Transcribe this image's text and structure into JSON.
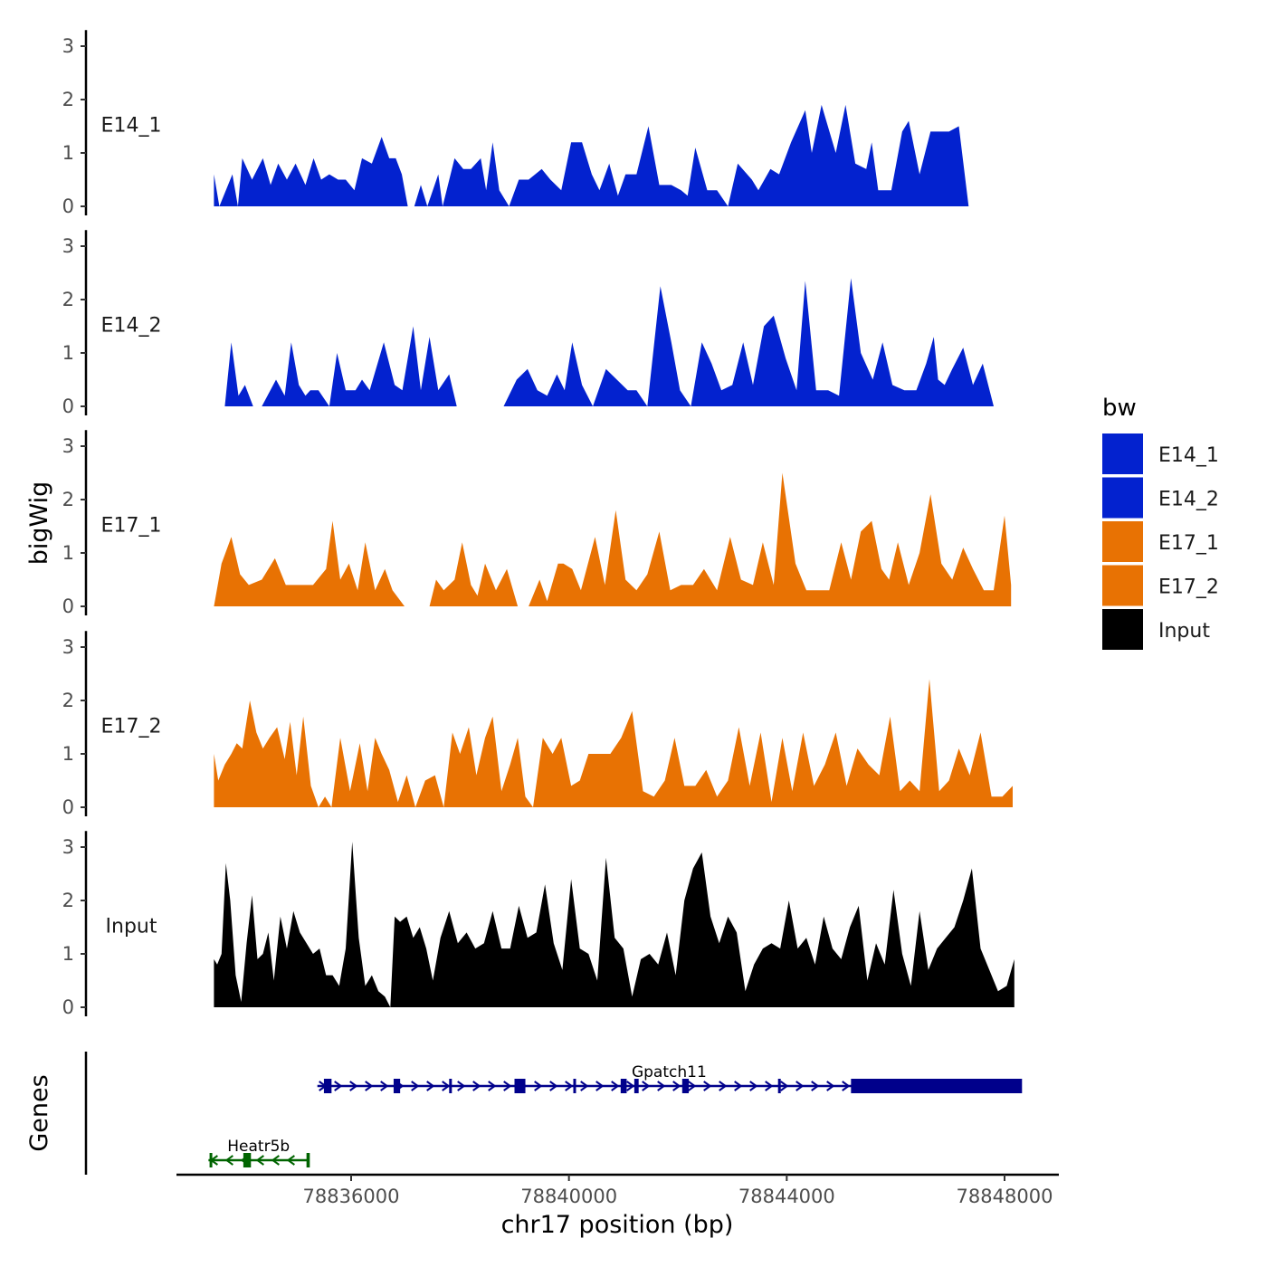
{
  "chart_data": {
    "type": "area",
    "x_axis": {
      "title": "chr17 position (bp)",
      "range": [
        78833400,
        78848700
      ],
      "ticks": [
        78836000,
        78840000,
        78844000,
        78848000
      ],
      "tick_labels": [
        "78836000",
        "78840000",
        "78844000",
        "78848000"
      ]
    },
    "y_axis": {
      "title": "bigWig",
      "range": [
        0,
        3.25
      ],
      "ticks": [
        0,
        1,
        2,
        3
      ],
      "tick_labels": [
        "0",
        "1",
        "2",
        "3"
      ]
    },
    "series": [
      {
        "name": "E14_1",
        "color": "#0322CF",
        "x": [
          78833480,
          78833580,
          78833820,
          78833920,
          78834000,
          78834180,
          78834380,
          78834520,
          78834660,
          78834820,
          78834980,
          78835160,
          78835310,
          78835450,
          78835600,
          78835760,
          78835900,
          78836060,
          78836200,
          78836380,
          78836560,
          78836700,
          78836820,
          78836930,
          78837040,
          78837160,
          78837280,
          78837400,
          78837600,
          78837680,
          78837900,
          78838060,
          78838200,
          78838380,
          78838480,
          78838600,
          78838720,
          78838900,
          78839080,
          78839260,
          78839500,
          78839660,
          78839860,
          78840040,
          78840240,
          78840420,
          78840560,
          78840740,
          78840900,
          78841040,
          78841240,
          78841460,
          78841660,
          78841880,
          78842060,
          78842180,
          78842320,
          78842540,
          78842720,
          78842920,
          78843100,
          78843360,
          78843480,
          78843700,
          78843860,
          78844080,
          78844340,
          78844460,
          78844640,
          78844900,
          78845080,
          78845260,
          78845460,
          78845560,
          78845680,
          78845920,
          78846120,
          78846240,
          78846440,
          78846640,
          78846840,
          78846980,
          78847160,
          78847340,
          78847620,
          78847780,
          78847900,
          78848050,
          78848120
        ],
        "values": [
          0.6,
          0,
          0.6,
          0,
          0.9,
          0.5,
          0.9,
          0.4,
          0.8,
          0.5,
          0.8,
          0.4,
          0.9,
          0.5,
          0.6,
          0.5,
          0.5,
          0.3,
          0.9,
          0.8,
          1.3,
          0.9,
          0.9,
          0.6,
          0,
          0,
          0.4,
          0,
          0.6,
          0,
          0.9,
          0.7,
          0.7,
          0.9,
          0.3,
          1.2,
          0.3,
          0,
          0.5,
          0.5,
          0.7,
          0.5,
          0.3,
          1.2,
          1.2,
          0.6,
          0.3,
          0.8,
          0.2,
          0.6,
          0.6,
          1.5,
          0.4,
          0.4,
          0.3,
          0.2,
          1.1,
          0.3,
          0.3,
          0,
          0.8,
          0.5,
          0.3,
          0.7,
          0.6,
          1.2,
          1.8,
          1.0,
          1.9,
          1.0,
          1.9,
          0.8,
          0.7,
          1.2,
          0.3,
          0.3,
          1.4,
          1.6,
          0.6,
          1.4,
          1.4,
          1.4,
          1.5,
          0,
          0,
          0,
          0,
          0,
          0
        ]
      },
      {
        "name": "E14_2",
        "color": "#0322CF",
        "x": [
          78833680,
          78833800,
          78833930,
          78834050,
          78834200,
          78834360,
          78834620,
          78834780,
          78834900,
          78835040,
          78835160,
          78835250,
          78835400,
          78835600,
          78835740,
          78835900,
          78836080,
          78836200,
          78836340,
          78836600,
          78836800,
          78836940,
          78837140,
          78837280,
          78837440,
          78837600,
          78837800,
          78837940,
          78838040,
          78838120,
          78838200,
          78838320,
          78838480,
          78838620,
          78838800,
          78839040,
          78839240,
          78839420,
          78839600,
          78839780,
          78839920,
          78840060,
          78840240,
          78840440,
          78840680,
          78840880,
          78841080,
          78841240,
          78841440,
          78841680,
          78841880,
          78842040,
          78842240,
          78842440,
          78842620,
          78842800,
          78843000,
          78843200,
          78843380,
          78843580,
          78843760,
          78843980,
          78844180,
          78844340,
          78844540,
          78844760,
          78844960,
          78845180,
          78845360,
          78845580,
          78845760,
          78845940,
          78846160,
          78846380,
          78846560,
          78846700,
          78846780,
          78846900,
          78847040,
          78847240,
          78847420,
          78847600,
          78847800,
          78848000,
          78848120,
          78848250
        ],
        "values": [
          0,
          1.2,
          0.2,
          0.4,
          0,
          0,
          0.5,
          0.2,
          1.2,
          0.4,
          0.2,
          0.3,
          0.3,
          0,
          1.0,
          0.3,
          0.3,
          0.5,
          0.3,
          1.2,
          0.4,
          0.3,
          1.5,
          0.3,
          1.3,
          0.3,
          0.6,
          0,
          0,
          0,
          0,
          0,
          0,
          0,
          0,
          0.5,
          0.7,
          0.3,
          0.2,
          0.6,
          0.3,
          1.2,
          0.4,
          0,
          0.7,
          0.5,
          0.3,
          0.3,
          0,
          2.25,
          1.2,
          0.3,
          0,
          1.2,
          0.8,
          0.3,
          0.4,
          1.2,
          0.4,
          1.5,
          1.7,
          0.9,
          0.3,
          2.35,
          0.3,
          0.3,
          0.2,
          2.4,
          1.0,
          0.5,
          1.2,
          0.4,
          0.3,
          0.3,
          0.8,
          1.3,
          0.5,
          0.4,
          0.7,
          1.1,
          0.4,
          0.8,
          0,
          0,
          0,
          0
        ]
      },
      {
        "name": "E17_1",
        "color": "#E87203",
        "x": [
          78833480,
          78833620,
          78833800,
          78833960,
          78834120,
          78834360,
          78834600,
          78834800,
          78835060,
          78835300,
          78835540,
          78835660,
          78835800,
          78835960,
          78836120,
          78836260,
          78836440,
          78836620,
          78836760,
          78836980,
          78837200,
          78837440,
          78837560,
          78837700,
          78837900,
          78838040,
          78838200,
          78838320,
          78838460,
          78838660,
          78838860,
          78839060,
          78839260,
          78839460,
          78839600,
          78839800,
          78839900,
          78840060,
          78840220,
          78840480,
          78840660,
          78840860,
          78841040,
          78841240,
          78841440,
          78841660,
          78841860,
          78842060,
          78842280,
          78842480,
          78842720,
          78842960,
          78843160,
          78843380,
          78843560,
          78843760,
          78843920,
          78844160,
          78844360,
          78844560,
          78844780,
          78845000,
          78845180,
          78845360,
          78845560,
          78845740,
          78845880,
          78846040,
          78846240,
          78846440,
          78846640,
          78846840,
          78847040,
          78847240,
          78847420,
          78847620,
          78847800,
          78848000,
          78848120
        ],
        "values": [
          0,
          0.8,
          1.3,
          0.6,
          0.4,
          0.5,
          0.9,
          0.4,
          0.4,
          0.4,
          0.7,
          1.6,
          0.5,
          0.8,
          0.3,
          1.2,
          0.3,
          0.7,
          0.3,
          0,
          0,
          0,
          0.5,
          0.3,
          0.5,
          1.2,
          0.4,
          0.2,
          0.8,
          0.3,
          0.7,
          0,
          0,
          0.5,
          0.1,
          0.8,
          0.8,
          0.7,
          0.3,
          1.3,
          0.4,
          1.8,
          0.5,
          0.3,
          0.6,
          1.4,
          0.3,
          0.4,
          0.4,
          0.7,
          0.3,
          1.3,
          0.5,
          0.4,
          1.2,
          0.4,
          2.5,
          0.8,
          0.3,
          0.3,
          0.3,
          1.2,
          0.5,
          1.4,
          1.6,
          0.7,
          0.5,
          1.2,
          0.4,
          1.0,
          2.1,
          0.8,
          0.5,
          1.1,
          0.7,
          0.3,
          0.3,
          1.7,
          0.4
        ]
      },
      {
        "name": "E17_2",
        "color": "#E87203",
        "x": [
          78833480,
          78833560,
          78833680,
          78833800,
          78833900,
          78834000,
          78834140,
          78834260,
          78834380,
          78834500,
          78834640,
          78834780,
          78834880,
          78835000,
          78835120,
          78835260,
          78835400,
          78835520,
          78835640,
          78835800,
          78835980,
          78836160,
          78836300,
          78836440,
          78836560,
          78836700,
          78836860,
          78837020,
          78837180,
          78837360,
          78837540,
          78837700,
          78837860,
          78838000,
          78838160,
          78838300,
          78838460,
          78838600,
          78838760,
          78838920,
          78839060,
          78839200,
          78839340,
          78839520,
          78839700,
          78839860,
          78840040,
          78840200,
          78840360,
          78840560,
          78840760,
          78840960,
          78841160,
          78841360,
          78841560,
          78841760,
          78841940,
          78842120,
          78842320,
          78842520,
          78842720,
          78842920,
          78843120,
          78843320,
          78843520,
          78843720,
          78843920,
          78844100,
          78844300,
          78844500,
          78844700,
          78844900,
          78845100,
          78845300,
          78845500,
          78845700,
          78845900,
          78846080,
          78846260,
          78846440,
          78846620,
          78846800,
          78846980,
          78847160,
          78847360,
          78847560,
          78847760,
          78847960,
          78848150
        ],
        "values": [
          1.0,
          0.5,
          0.8,
          1.0,
          1.2,
          1.1,
          2.0,
          1.4,
          1.1,
          1.3,
          1.5,
          0.9,
          1.6,
          0.6,
          1.7,
          0.4,
          0,
          0.2,
          0,
          1.3,
          0.3,
          1.2,
          0.3,
          1.3,
          1.0,
          0.7,
          0.1,
          0.6,
          0,
          0.5,
          0.6,
          0,
          1.4,
          1.0,
          1.5,
          0.6,
          1.3,
          1.7,
          0.3,
          0.8,
          1.3,
          0.2,
          0,
          1.3,
          1.0,
          1.3,
          0.4,
          0.5,
          1.0,
          1.0,
          1.0,
          1.3,
          1.8,
          0.3,
          0.2,
          0.5,
          1.3,
          0.4,
          0.4,
          0.7,
          0.2,
          0.5,
          1.5,
          0.4,
          1.4,
          0.1,
          1.3,
          0.3,
          1.4,
          0.4,
          0.8,
          1.4,
          0.4,
          1.1,
          0.8,
          0.6,
          1.7,
          0.3,
          0.5,
          0.3,
          2.4,
          0.3,
          0.5,
          1.1,
          0.6,
          1.4,
          0.2,
          0.2,
          0.4
        ]
      },
      {
        "name": "Input",
        "color": "#000000",
        "x": [
          78833480,
          78833540,
          78833620,
          78833700,
          78833780,
          78833880,
          78833980,
          78834080,
          78834180,
          78834280,
          78834380,
          78834480,
          78834580,
          78834700,
          78834820,
          78834940,
          78835060,
          78835180,
          78835300,
          78835420,
          78835540,
          78835660,
          78835780,
          78835900,
          78836020,
          78836140,
          78836260,
          78836380,
          78836500,
          78836620,
          78836720,
          78836800,
          78836900,
          78837020,
          78837140,
          78837260,
          78837380,
          78837500,
          78837640,
          78837800,
          78837960,
          78838120,
          78838280,
          78838440,
          78838600,
          78838760,
          78838920,
          78839080,
          78839240,
          78839400,
          78839560,
          78839720,
          78839880,
          78840040,
          78840200,
          78840360,
          78840520,
          78840680,
          78840840,
          78841000,
          78841160,
          78841320,
          78841480,
          78841640,
          78841800,
          78841960,
          78842120,
          78842280,
          78842440,
          78842600,
          78842760,
          78842920,
          78843080,
          78843240,
          78843400,
          78843560,
          78843720,
          78843880,
          78844040,
          78844200,
          78844360,
          78844520,
          78844680,
          78844840,
          78845000,
          78845160,
          78845320,
          78845480,
          78845640,
          78845800,
          78845960,
          78846120,
          78846280,
          78846440,
          78846600,
          78846760,
          78846920,
          78847080,
          78847240,
          78847400,
          78847560,
          78847720,
          78847880,
          78848040,
          78848180
        ],
        "values": [
          0.9,
          0.8,
          1.0,
          2.7,
          2.0,
          0.6,
          0.1,
          1.2,
          2.1,
          0.9,
          1.0,
          1.4,
          0.5,
          1.7,
          1.1,
          1.8,
          1.4,
          1.2,
          1.0,
          1.1,
          0.6,
          0.6,
          0.4,
          1.1,
          3.1,
          1.3,
          0.4,
          0.6,
          0.3,
          0.2,
          0.0,
          1.7,
          1.6,
          1.7,
          1.3,
          1.5,
          1.1,
          0.5,
          1.3,
          1.8,
          1.2,
          1.4,
          1.1,
          1.2,
          1.8,
          1.1,
          1.1,
          1.9,
          1.3,
          1.4,
          2.3,
          1.2,
          0.7,
          2.4,
          1.1,
          1.0,
          0.5,
          2.8,
          1.3,
          1.1,
          0.2,
          0.9,
          1.0,
          0.8,
          1.4,
          0.6,
          2.0,
          2.6,
          2.9,
          1.7,
          1.2,
          1.7,
          1.4,
          0.3,
          0.8,
          1.1,
          1.2,
          1.1,
          2.0,
          1.1,
          1.3,
          0.8,
          1.7,
          1.1,
          0.9,
          1.5,
          1.9,
          0.5,
          1.2,
          0.8,
          2.2,
          1.0,
          0.4,
          1.8,
          0.7,
          1.1,
          1.3,
          1.5,
          2.0,
          2.6,
          1.1,
          0.7,
          0.3,
          0.4,
          0.9
        ]
      }
    ],
    "genes": [
      {
        "name": "Gpatch11",
        "strand": "+",
        "color": "#00008B",
        "start": 78835380,
        "end": 78848300,
        "exons": [
          [
            78835500,
            78835640
          ],
          [
            78836780,
            78836900
          ],
          [
            78837800,
            78837850
          ],
          [
            78839000,
            78839200
          ],
          [
            78840080,
            78840100
          ],
          [
            78840950,
            78841060
          ],
          [
            78841200,
            78841280
          ],
          [
            78842080,
            78842200
          ],
          [
            78843840,
            78843880
          ],
          [
            78845180,
            78848300
          ]
        ]
      },
      {
        "name": "Heatr5b",
        "strand": "-",
        "color": "#006400",
        "start": 78833380,
        "end": 78835220,
        "exons": [
          [
            78833400,
            78833440
          ],
          [
            78834020,
            78834160
          ],
          [
            78835180,
            78835220
          ]
        ]
      }
    ]
  },
  "legend": {
    "title": "bw",
    "entries": [
      {
        "label": "E14_1",
        "color": "#0322CF"
      },
      {
        "label": "E14_2",
        "color": "#0322CF"
      },
      {
        "label": "E17_1",
        "color": "#E87203"
      },
      {
        "label": "E17_2",
        "color": "#E87203"
      },
      {
        "label": "Input",
        "color": "#000000"
      }
    ]
  },
  "genes_panel_title": "Genes"
}
